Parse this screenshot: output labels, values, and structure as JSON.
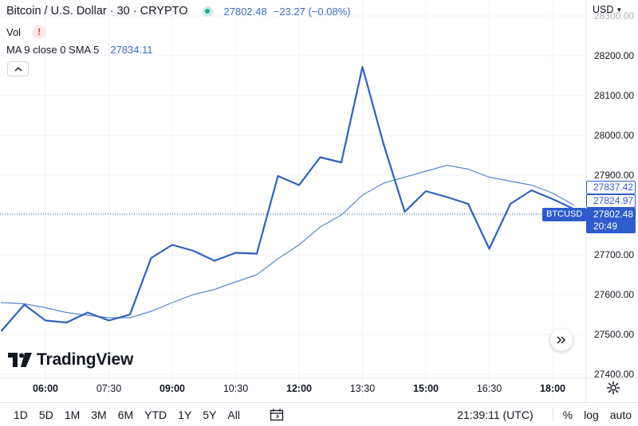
{
  "header": {
    "symbol_title": "Bitcoin / U.S. Dollar · 30 · CRYPTO",
    "last_price": "27802.48",
    "change": "−23.27 (−0.08%)",
    "vol_label": "Vol",
    "ma_label": "MA 9 close 0 SMA 5",
    "ma_value": "27834.11"
  },
  "price_axis": {
    "currency": "USD",
    "ticks": [
      "28300.00",
      "28200.00",
      "28100.00",
      "28000.00",
      "27900.00",
      "27800.00",
      "27700.00",
      "27600.00",
      "27500.00",
      "27400.00"
    ],
    "tag_high": "27837.42",
    "tag_mid": "27824.97",
    "tag_last": "27802.48",
    "tag_countdown": "20:49",
    "symbol_tag": "BTCUSD"
  },
  "time_axis": {
    "ticks": [
      "06:00",
      "07:30",
      "09:00",
      "10:30",
      "12:00",
      "13:30",
      "15:00",
      "16:30",
      "18:00"
    ],
    "bold": [
      "06:00",
      "09:00",
      "12:00",
      "15:00",
      "18:00"
    ]
  },
  "logo": {
    "text": "TradingView"
  },
  "toolbar": {
    "ranges": [
      "1D",
      "5D",
      "1M",
      "3M",
      "6M",
      "YTD",
      "1Y",
      "5Y",
      "All"
    ],
    "clock": "21:39:11 (UTC)",
    "percent": "%",
    "log": "log",
    "auto": "auto"
  },
  "colors": {
    "price_line": "#3060c0",
    "ma_line": "#5a86d6",
    "grid": "#f0f3fa",
    "accent": "#2e5ccc"
  },
  "chart_data": {
    "type": "line",
    "x_ticks": [
      "06:00",
      "07:30",
      "09:00",
      "10:30",
      "12:00",
      "13:30",
      "15:00",
      "16:30",
      "18:00"
    ],
    "ylim": [
      27400,
      28300
    ],
    "series": [
      {
        "name": "BTCUSD",
        "x_hours": [
          4.95,
          5.5,
          6.0,
          6.5,
          7.0,
          7.5,
          8.0,
          8.5,
          9.0,
          9.5,
          10.0,
          10.5,
          11.0,
          11.5,
          12.0,
          12.5,
          13.0,
          13.5,
          14.0,
          14.5,
          15.0,
          15.5,
          16.0,
          16.5,
          17.0,
          17.5,
          18.0,
          18.5
        ],
        "values": [
          27508,
          27575,
          27535,
          27530,
          27555,
          27535,
          27550,
          27692,
          27725,
          27710,
          27685,
          27705,
          27703,
          27898,
          27875,
          27945,
          27932,
          28172,
          27978,
          27808,
          27860,
          27845,
          27828,
          27715,
          27828,
          27862,
          27840,
          27815
        ]
      },
      {
        "name": "MA 9 close 0 SMA 5",
        "x_hours": [
          4.95,
          5.5,
          6.0,
          6.5,
          7.0,
          7.5,
          8.0,
          8.5,
          9.0,
          9.5,
          10.0,
          10.5,
          11.0,
          11.5,
          12.0,
          12.5,
          13.0,
          13.5,
          14.0,
          14.5,
          15.0,
          15.5,
          16.0,
          16.5,
          17.0,
          17.5,
          18.0,
          18.5
        ],
        "values": [
          27580,
          27577,
          27567,
          27555,
          27548,
          27542,
          27542,
          27558,
          27580,
          27600,
          27613,
          27632,
          27650,
          27690,
          27725,
          27770,
          27800,
          27850,
          27880,
          27895,
          27910,
          27925,
          27915,
          27895,
          27885,
          27875,
          27855,
          27825
        ]
      }
    ],
    "last_price": 27802.48
  }
}
